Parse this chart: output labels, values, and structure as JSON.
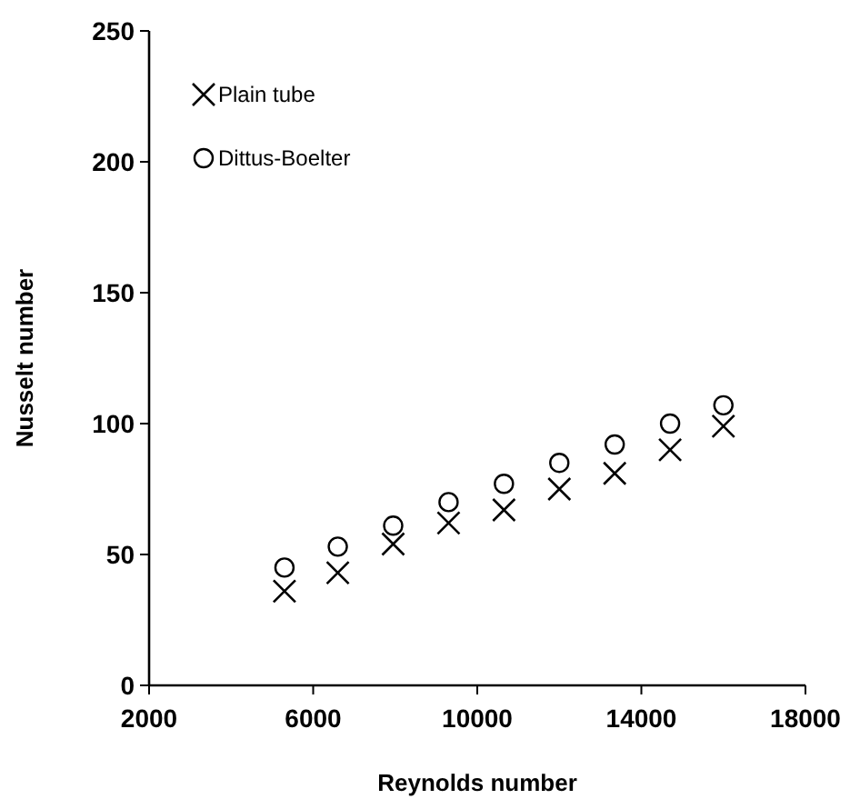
{
  "chart_data": {
    "type": "scatter",
    "xlabel": "Reynolds number",
    "ylabel": "Nusselt number",
    "x": [
      5300,
      6600,
      7950,
      9300,
      10650,
      12000,
      13350,
      14700,
      16000
    ],
    "series": [
      {
        "name": "Plain tube",
        "color": "#000000",
        "marker": "cross",
        "values": [
          36,
          43,
          54,
          62,
          67,
          75,
          81,
          90,
          99
        ]
      },
      {
        "name": "Dittus-Boelter",
        "color": "#000000",
        "marker": "circle",
        "values": [
          45,
          53,
          61,
          70,
          77,
          85,
          92,
          100,
          107
        ]
      }
    ],
    "xlim": [
      2000,
      18000
    ],
    "xticks": [
      2000,
      6000,
      10000,
      14000,
      18000
    ],
    "ylim": [
      0,
      250
    ],
    "yticks": [
      0,
      50,
      100,
      150,
      200,
      250
    ],
    "legend": "top left",
    "grid": false
  }
}
